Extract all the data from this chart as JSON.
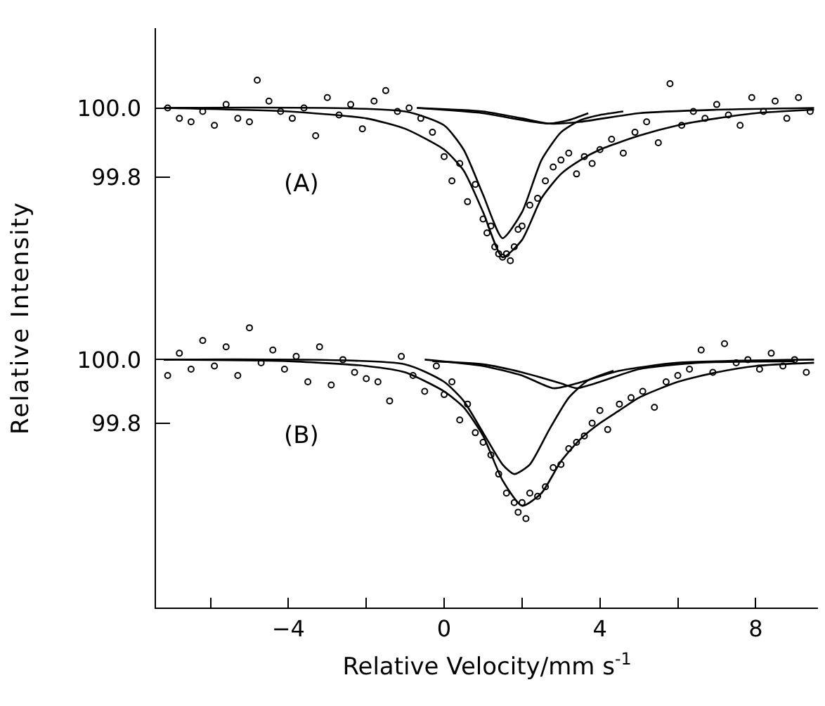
{
  "chart_data": [
    {
      "type": "scatter",
      "ylabel": "Relative Intensity",
      "annotations": [
        "(A)"
      ],
      "marker": "circle",
      "tick_labels": "y",
      "xlim": [
        -7.4,
        9.6
      ],
      "ylim": [
        99.44,
        100.23
      ],
      "yticks": [
        99.8,
        {
          "value": 100,
          "label": "100.0"
        }
      ],
      "series": [
        {
          "color": "#000000",
          "x": [
            -7.1,
            -6.8,
            -6.5,
            -6.2,
            -5.9,
            -5.6,
            -5.3,
            -5.0,
            -4.8,
            -4.5,
            -4.2,
            -3.9,
            -3.6,
            -3.3,
            -3.0,
            -2.7,
            -2.4,
            -2.1,
            -1.8,
            -1.5,
            -1.2,
            -0.9,
            -0.6,
            -0.3,
            0.0,
            0.2,
            0.4,
            0.6,
            0.8,
            1.0,
            1.1,
            1.2,
            1.3,
            1.4,
            1.5,
            1.6,
            1.7,
            1.8,
            1.9,
            2.0,
            2.2,
            2.4,
            2.6,
            2.8,
            3.0,
            3.2,
            3.4,
            3.6,
            3.8,
            4.0,
            4.3,
            4.6,
            4.9,
            5.2,
            5.5,
            5.8,
            6.1,
            6.4,
            6.7,
            7.0,
            7.3,
            7.6,
            7.9,
            8.2,
            8.5,
            8.8,
            9.1,
            9.4
          ],
          "values": [
            100.0,
            99.97,
            99.96,
            99.99,
            99.95,
            100.01,
            99.97,
            99.96,
            100.08,
            100.02,
            99.99,
            99.97,
            100.0,
            99.92,
            100.03,
            99.98,
            100.01,
            99.94,
            100.02,
            100.05,
            99.99,
            100.0,
            99.97,
            99.93,
            99.86,
            99.79,
            99.84,
            99.73,
            99.78,
            99.68,
            99.64,
            99.66,
            99.6,
            99.58,
            99.57,
            99.58,
            99.56,
            99.6,
            99.65,
            99.66,
            99.72,
            99.74,
            99.79,
            99.83,
            99.85,
            99.87,
            99.81,
            99.86,
            99.84,
            99.88,
            99.91,
            99.87,
            99.93,
            99.96,
            99.9,
            100.07,
            99.95,
            99.99,
            99.97,
            100.01,
            99.98,
            99.95,
            100.03,
            99.99,
            100.02,
            99.97,
            100.03,
            99.99
          ]
        },
        {
          "type": "line",
          "marker": "none",
          "color": "#000000",
          "x": [
            -7.2,
            -4,
            -2,
            -1,
            0,
            0.5,
            1,
            1.5,
            2,
            2.5,
            3,
            3.5,
            4,
            5,
            6,
            7,
            8,
            9.5
          ],
          "values": [
            100.0,
            99.99,
            99.97,
            99.94,
            99.88,
            99.82,
            99.7,
            99.57,
            99.62,
            99.74,
            99.81,
            99.85,
            99.88,
            99.92,
            99.95,
            99.97,
            99.985,
            99.995
          ]
        },
        {
          "type": "line",
          "marker": "none",
          "color": "#000000",
          "x": [
            -7.2,
            -1,
            0,
            0.5,
            1,
            1.5,
            2,
            2.5,
            3,
            3.5,
            4,
            4.6
          ],
          "values": [
            100.0,
            99.99,
            99.95,
            99.88,
            99.75,
            99.625,
            99.7,
            99.85,
            99.93,
            99.965,
            99.98,
            99.99
          ]
        },
        {
          "type": "line",
          "marker": "none",
          "color": "#000000",
          "x": [
            -0.7,
            1,
            2,
            2.7,
            3.5,
            5,
            7,
            9.5
          ],
          "values": [
            100.0,
            99.99,
            99.97,
            99.955,
            99.96,
            99.985,
            99.995,
            100.0
          ]
        },
        {
          "type": "line",
          "marker": "none",
          "color": "#000000",
          "x": [
            -0.7,
            1,
            2,
            2.7,
            3.2,
            3.7
          ],
          "values": [
            100.0,
            99.985,
            99.965,
            99.955,
            99.965,
            99.985
          ]
        }
      ]
    },
    {
      "type": "scatter",
      "xlabel": "Relative Velocity/mm s$^{-1}$",
      "annotations": [
        "(B)"
      ],
      "marker": "circle",
      "xlim": [
        -7.4,
        9.6
      ],
      "xticks": [
        {
          "value": -6,
          "label": null
        },
        {
          "value": -4,
          "label": "−4"
        },
        {
          "value": -2,
          "label": null
        },
        0,
        {
          "value": 2,
          "label": null
        },
        4,
        {
          "value": 6,
          "label": null
        },
        8
      ],
      "ylim": [
        99.22,
        100.18
      ],
      "yticks": [
        99.8,
        {
          "value": 100,
          "label": "100.0"
        }
      ],
      "series": [
        {
          "color": "#000000",
          "x": [
            -7.1,
            -6.8,
            -6.5,
            -6.2,
            -5.9,
            -5.6,
            -5.3,
            -5.0,
            -4.7,
            -4.4,
            -4.1,
            -3.8,
            -3.5,
            -3.2,
            -2.9,
            -2.6,
            -2.3,
            -2.0,
            -1.7,
            -1.4,
            -1.1,
            -0.8,
            -0.5,
            -0.2,
            0.0,
            0.2,
            0.4,
            0.6,
            0.8,
            1.0,
            1.2,
            1.4,
            1.6,
            1.8,
            1.9,
            2.0,
            2.1,
            2.2,
            2.4,
            2.6,
            2.8,
            3.0,
            3.2,
            3.4,
            3.6,
            3.8,
            4.0,
            4.2,
            4.5,
            4.8,
            5.1,
            5.4,
            5.7,
            6.0,
            6.3,
            6.6,
            6.9,
            7.2,
            7.5,
            7.8,
            8.1,
            8.4,
            8.7,
            9.0,
            9.3
          ],
          "values": [
            99.95,
            100.02,
            99.97,
            100.06,
            99.98,
            100.04,
            99.95,
            100.1,
            99.99,
            100.03,
            99.97,
            100.01,
            99.93,
            100.04,
            99.92,
            100.0,
            99.96,
            99.94,
            99.93,
            99.87,
            100.01,
            99.95,
            99.9,
            99.98,
            99.89,
            99.93,
            99.81,
            99.86,
            99.77,
            99.74,
            99.7,
            99.64,
            99.58,
            99.55,
            99.52,
            99.55,
            99.5,
            99.58,
            99.57,
            99.6,
            99.66,
            99.67,
            99.72,
            99.74,
            99.76,
            99.8,
            99.84,
            99.78,
            99.86,
            99.88,
            99.9,
            99.85,
            99.93,
            99.95,
            99.97,
            100.03,
            99.96,
            100.05,
            99.99,
            100.0,
            99.97,
            100.02,
            99.98,
            100.0,
            99.96
          ]
        },
        {
          "type": "line",
          "marker": "none",
          "color": "#000000",
          "x": [
            -7.2,
            -4,
            -2,
            -1,
            0,
            0.5,
            1,
            1.5,
            2,
            2.5,
            3,
            3.5,
            4,
            4.5,
            5,
            6,
            7,
            8,
            9.5
          ],
          "values": [
            100.0,
            99.995,
            99.98,
            99.96,
            99.9,
            99.85,
            99.76,
            99.62,
            99.54,
            99.58,
            99.68,
            99.75,
            99.8,
            99.84,
            99.88,
            99.93,
            99.96,
            99.98,
            99.99
          ]
        },
        {
          "type": "line",
          "marker": "none",
          "color": "#000000",
          "x": [
            -7.2,
            -1,
            0,
            0.5,
            1,
            1.5,
            1.8,
            2.2,
            2.7,
            3.2,
            3.7,
            4.35
          ],
          "values": [
            100.0,
            99.985,
            99.93,
            99.87,
            99.77,
            99.67,
            99.64,
            99.67,
            99.78,
            99.88,
            99.935,
            99.965
          ]
        },
        {
          "type": "line",
          "marker": "none",
          "color": "#000000",
          "x": [
            -0.5,
            1,
            2,
            2.8,
            3.4,
            4.5,
            6,
            9.5
          ],
          "values": [
            100.0,
            99.98,
            99.95,
            99.91,
            99.925,
            99.965,
            99.99,
            100.0
          ]
        },
        {
          "type": "line",
          "marker": "none",
          "color": "#000000",
          "x": [
            -0.3,
            1,
            2,
            3,
            3.4,
            4,
            5,
            6.5,
            9.0
          ],
          "values": [
            99.995,
            99.985,
            99.96,
            99.925,
            99.91,
            99.93,
            99.97,
            99.99,
            99.995
          ]
        }
      ]
    }
  ]
}
